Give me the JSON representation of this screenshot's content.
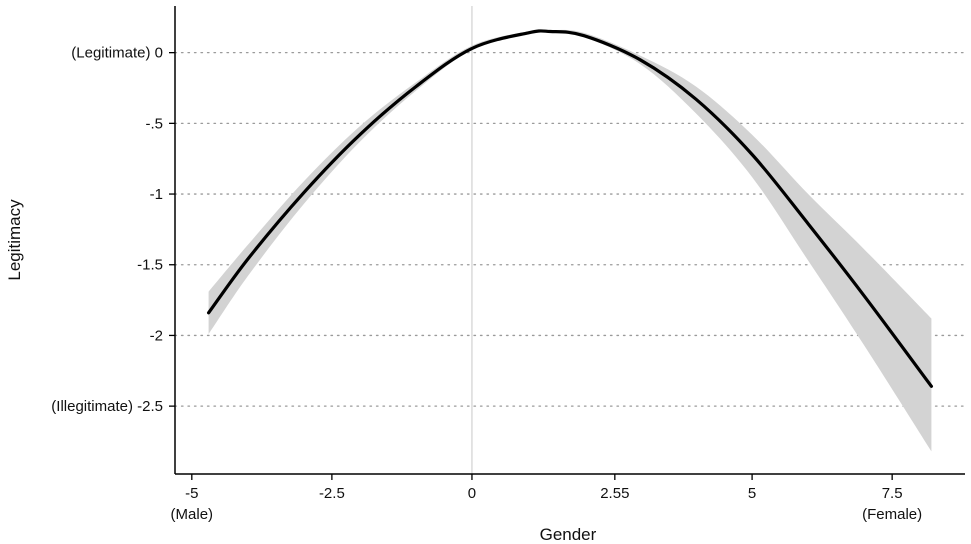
{
  "chart_data": {
    "type": "line",
    "xlabel": "Gender",
    "ylabel": "Legitimacy",
    "xlim": [
      -5.3,
      8.8
    ],
    "ylim": [
      -2.98,
      0.33
    ],
    "grid": "horizontal dotted",
    "x_ticks": [
      {
        "value": -5,
        "label": "-5",
        "sublabel": "(Male)"
      },
      {
        "value": -2.5,
        "label": "-2.5",
        "sublabel": ""
      },
      {
        "value": 0,
        "label": "0",
        "sublabel": ""
      },
      {
        "value": 2.55,
        "label": "2.55",
        "sublabel": ""
      },
      {
        "value": 5,
        "label": "5",
        "sublabel": ""
      },
      {
        "value": 7.5,
        "label": "7.5",
        "sublabel": "(Female)"
      }
    ],
    "y_ticks": [
      {
        "value": 0,
        "label": "(Legitimate) 0"
      },
      {
        "value": -0.5,
        "label": "-.5"
      },
      {
        "value": -1,
        "label": "-1"
      },
      {
        "value": -1.5,
        "label": "-1.5"
      },
      {
        "value": -2,
        "label": "-2"
      },
      {
        "value": -2.5,
        "label": "(Illegitimate) -2.5"
      }
    ],
    "reference_line_x": 0,
    "series": [
      {
        "line_color": "#000000",
        "band_color": "#d3d3d3",
        "x": [
          -4.7,
          -4.0,
          -3.0,
          -2.0,
          -1.0,
          0.0,
          1.0,
          1.4,
          2.0,
          3.0,
          4.0,
          5.0,
          6.0,
          7.0,
          8.2
        ],
        "y": [
          -1.84,
          -1.46,
          -0.99,
          -0.58,
          -0.24,
          0.03,
          0.14,
          0.15,
          0.12,
          -0.05,
          -0.33,
          -0.72,
          -1.21,
          -1.72,
          -2.36
        ],
        "lower": [
          -1.99,
          -1.58,
          -1.07,
          -0.63,
          -0.27,
          0.02,
          0.13,
          0.14,
          0.11,
          -0.08,
          -0.43,
          -0.88,
          -1.47,
          -2.07,
          -2.82
        ],
        "upper": [
          -1.69,
          -1.36,
          -0.91,
          -0.52,
          -0.21,
          0.05,
          0.15,
          0.16,
          0.14,
          -0.02,
          -0.24,
          -0.58,
          -1.0,
          -1.39,
          -1.88
        ]
      }
    ]
  }
}
